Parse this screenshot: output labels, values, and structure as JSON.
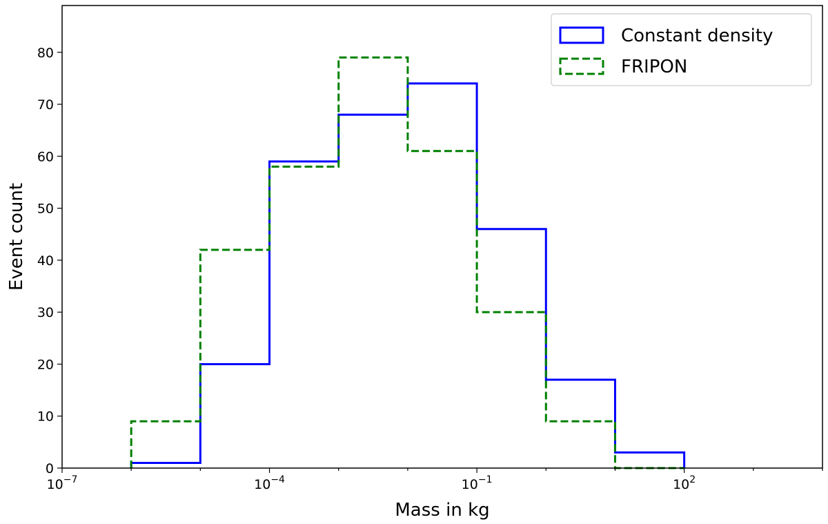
{
  "chart_data": {
    "type": "histogram",
    "title": "",
    "xlabel": "Mass in kg",
    "ylabel": "Event count",
    "xscale": "log",
    "xlim_exp": [
      -7,
      4
    ],
    "ylim": [
      0,
      89
    ],
    "bin_edges_exp": [
      -6,
      -5,
      -4,
      -3,
      -2,
      -1,
      0,
      1,
      2
    ],
    "x_ticks": [
      {
        "exp": -7,
        "base": "10",
        "sup": "−7"
      },
      {
        "exp": -4,
        "base": "10",
        "sup": "−4"
      },
      {
        "exp": -1,
        "base": "10",
        "sup": "−1"
      },
      {
        "exp": 2,
        "base": "10",
        "sup": "2"
      }
    ],
    "y_ticks": [
      0,
      10,
      20,
      30,
      40,
      50,
      60,
      70,
      80
    ],
    "series": [
      {
        "name": "Constant density",
        "style": "solid",
        "color": "#0000ff",
        "values": [
          1,
          20,
          59,
          68,
          74,
          46,
          17,
          3
        ]
      },
      {
        "name": "FRIPON",
        "style": "dashed",
        "color": "#008000",
        "values": [
          9,
          42,
          58,
          79,
          61,
          30,
          9,
          0
        ]
      }
    ],
    "legend": {
      "position": "top-right"
    },
    "grid": false
  }
}
